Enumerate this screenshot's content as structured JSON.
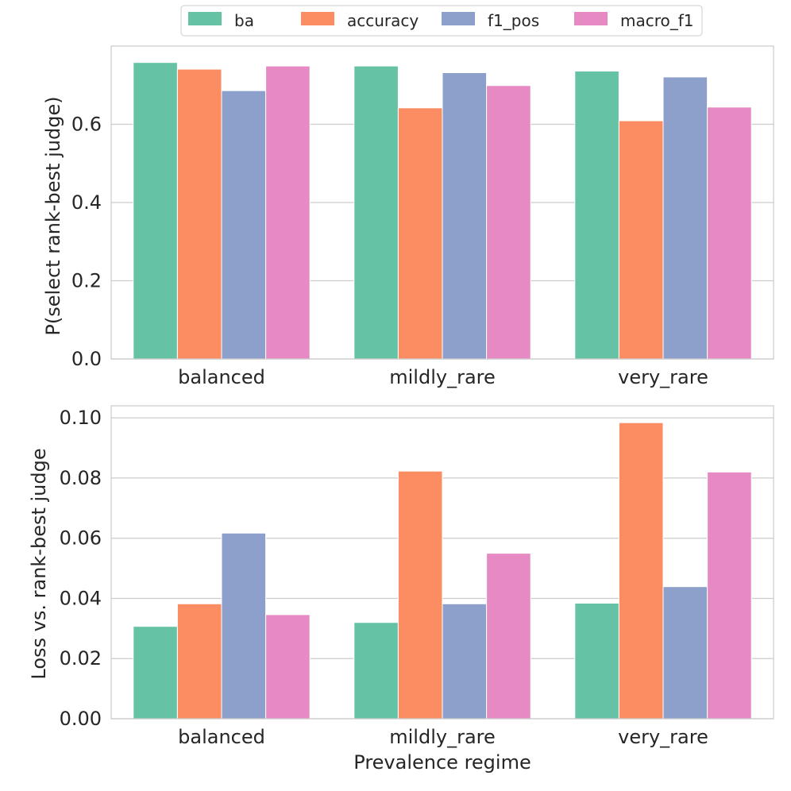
{
  "legend": {
    "entries": [
      {
        "name": "ba",
        "color": "#66c2a5"
      },
      {
        "name": "accuracy",
        "color": "#fc8d62"
      },
      {
        "name": "f1_pos",
        "color": "#8da0cb"
      },
      {
        "name": "macro_f1",
        "color": "#e78ac3"
      }
    ]
  },
  "chart_data": [
    {
      "type": "bar",
      "title": "",
      "xlabel": "",
      "ylabel": "P(select rank-best judge)",
      "categories": [
        "balanced",
        "mildly_rare",
        "very_rare"
      ],
      "ylim": [
        0,
        0.8
      ],
      "yticks": [
        0.0,
        0.2,
        0.4,
        0.6
      ],
      "ytick_labels": [
        "0.0",
        "0.2",
        "0.4",
        "0.6"
      ],
      "grid": true,
      "series": [
        {
          "name": "ba",
          "values": [
            0.758,
            0.749,
            0.736
          ]
        },
        {
          "name": "accuracy",
          "values": [
            0.741,
            0.642,
            0.609
          ]
        },
        {
          "name": "f1_pos",
          "values": [
            0.686,
            0.732,
            0.721
          ]
        },
        {
          "name": "macro_f1",
          "values": [
            0.749,
            0.699,
            0.644
          ]
        }
      ]
    },
    {
      "type": "bar",
      "title": "",
      "xlabel": "Prevalence regime",
      "ylabel": "Loss vs. rank-best judge",
      "categories": [
        "balanced",
        "mildly_rare",
        "very_rare"
      ],
      "ylim": [
        0,
        0.104
      ],
      "yticks": [
        0.0,
        0.02,
        0.04,
        0.06,
        0.08,
        0.1
      ],
      "ytick_labels": [
        "0.00",
        "0.02",
        "0.04",
        "0.06",
        "0.08",
        "0.10"
      ],
      "grid": true,
      "series": [
        {
          "name": "ba",
          "values": [
            0.0307,
            0.032,
            0.0384
          ]
        },
        {
          "name": "accuracy",
          "values": [
            0.0382,
            0.0823,
            0.0984
          ]
        },
        {
          "name": "f1_pos",
          "values": [
            0.0617,
            0.0382,
            0.0439
          ]
        },
        {
          "name": "macro_f1",
          "values": [
            0.0346,
            0.055,
            0.082
          ]
        }
      ]
    }
  ]
}
